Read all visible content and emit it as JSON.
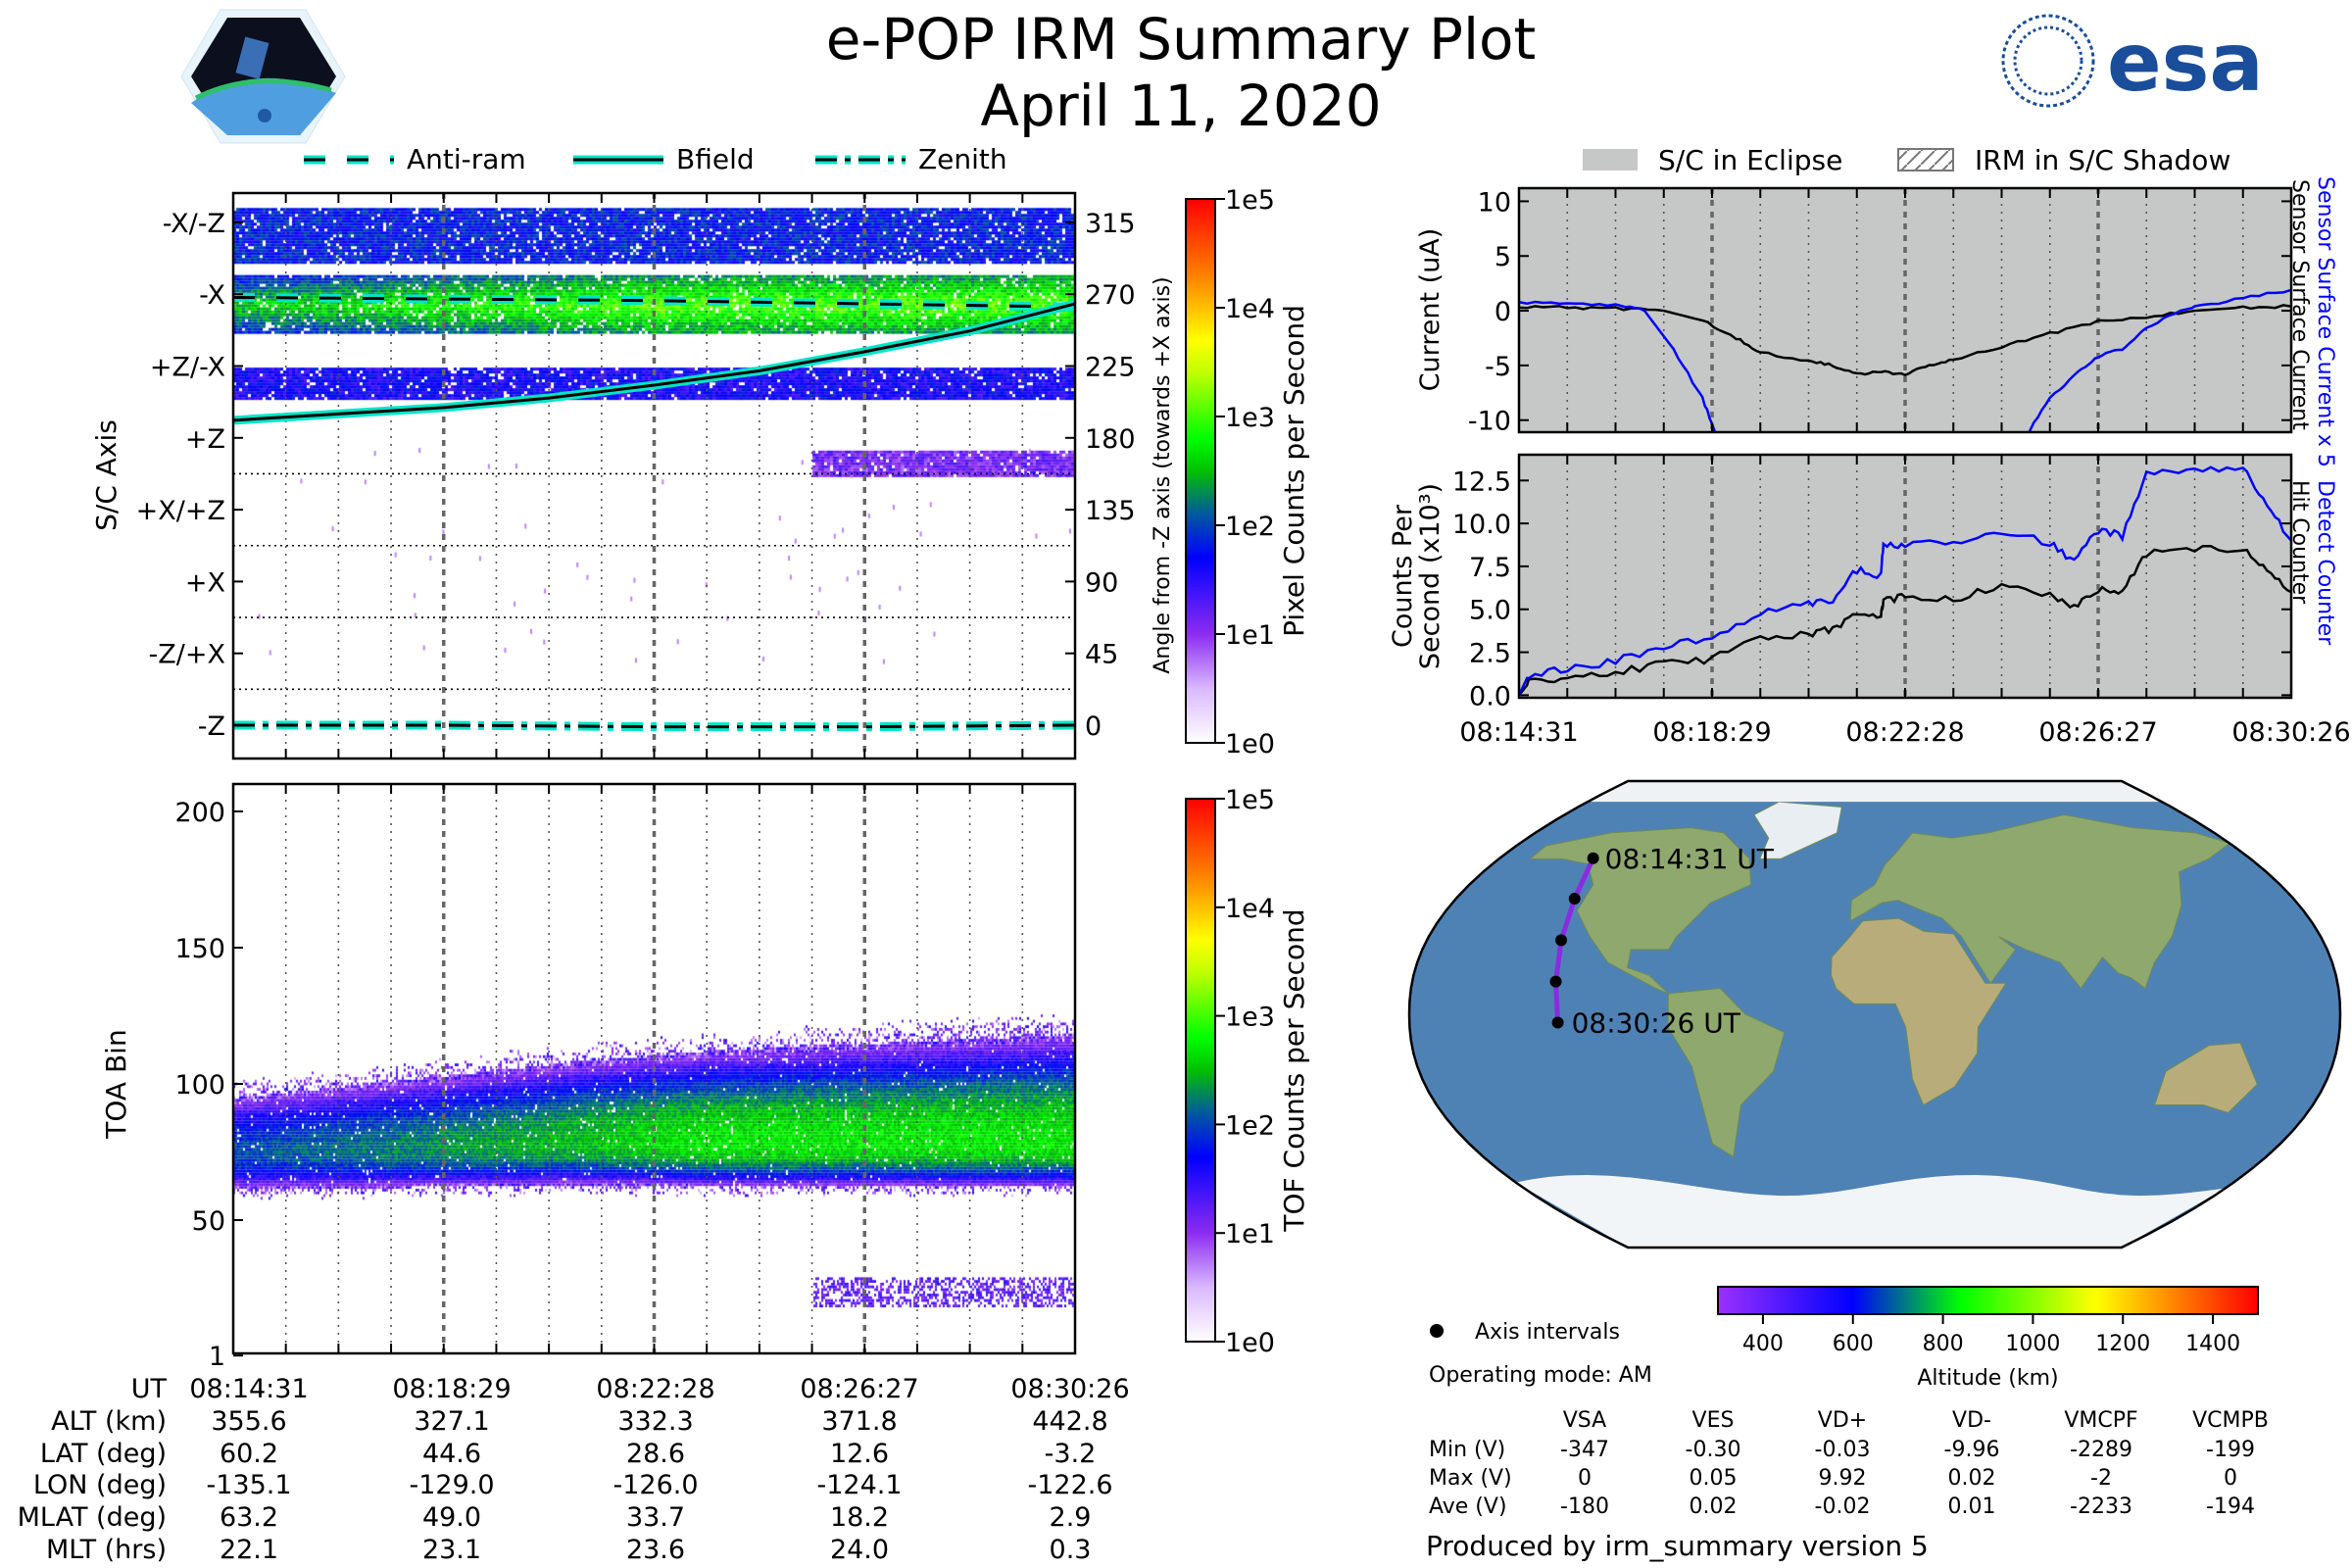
{
  "header": {
    "title": "e-POP IRM Summary Plot",
    "date": "April 11, 2020"
  },
  "logos": {
    "left": "CASSIOPE",
    "right": "esa"
  },
  "legend_left": [
    {
      "label": "Anti-ram",
      "style": "dashed"
    },
    {
      "label": "Bfield",
      "style": "solid"
    },
    {
      "label": "Zenith",
      "style": "dashdot"
    }
  ],
  "legend_right": [
    {
      "label": "S/C in Eclipse",
      "style": "gray-fill"
    },
    {
      "label": "IRM in S/C Shadow",
      "style": "hatched"
    }
  ],
  "colors": {
    "line_outline": "#00e5c8",
    "blue_series": "#0000ff",
    "eclipse_fill": "#c5c8c6"
  },
  "time_ticks": [
    "08:14:31",
    "08:18:29",
    "08:22:28",
    "08:26:27",
    "08:30:26"
  ],
  "chart_data": [
    {
      "id": "pixel",
      "type": "heatmap",
      "ylabel": "S/C Axis",
      "ylabel_right": "Angle from -Z axis (towards +X axis)",
      "yticklabels": [
        "-X/-Z",
        "-X",
        "+Z/-X",
        "+Z",
        "+X/+Z",
        "+X",
        "-Z/+X",
        "-Z"
      ],
      "yticks_right": [
        315,
        270,
        225,
        180,
        135,
        90,
        45,
        0
      ],
      "x_minutes": [
        0,
        16
      ],
      "bands": [
        {
          "angle_range": [
            290,
            324
          ],
          "log_level": 1.8
        },
        {
          "angle_range": [
            246,
            282
          ],
          "log_level": 2.6
        },
        {
          "angle_range": [
            204,
            224
          ],
          "log_level": 1.6
        },
        {
          "angle_range": [
            157,
            172
          ],
          "log_level": 1.1,
          "start_minute": 11
        }
      ],
      "lines": [
        {
          "name": "Anti-ram",
          "x": [
            0,
            4,
            8,
            12,
            16
          ],
          "y": [
            268,
            267,
            266,
            264,
            262
          ]
        },
        {
          "name": "Bfield",
          "x": [
            0,
            2,
            4,
            6,
            8,
            10,
            12,
            14,
            16
          ],
          "y": [
            191,
            195,
            199,
            205,
            213,
            222,
            234,
            247,
            264
          ]
        },
        {
          "name": "Zenith",
          "x": [
            0,
            4,
            8,
            12,
            16
          ],
          "y": [
            0,
            0,
            -1,
            -1,
            0
          ]
        }
      ],
      "colorbar": {
        "label": "Pixel Counts per Second",
        "ticks": [
          "1e0",
          "1e1",
          "1e2",
          "1e3",
          "1e4",
          "1e5"
        ]
      }
    },
    {
      "id": "tof",
      "type": "heatmap",
      "ylabel": "TOA Bin",
      "yticks": [
        1,
        50,
        100,
        150,
        200
      ],
      "ylim": [
        1,
        210
      ],
      "band_center": 78,
      "colorbar": {
        "label": "TOF Counts per Second",
        "ticks": [
          "1e0",
          "1e1",
          "1e2",
          "1e3",
          "1e4",
          "1e5"
        ]
      }
    },
    {
      "id": "current",
      "type": "line",
      "ylabel": "Current (uA)",
      "yticks": [
        -10,
        -5,
        0,
        5,
        10
      ],
      "ylim": [
        -11.1,
        11.2
      ],
      "right_labels": [
        {
          "text": "Sensor Surface Current x 5",
          "color": "#0000ff"
        },
        {
          "text": "Sensor Surface Current",
          "color": "#000000"
        }
      ],
      "series": [
        {
          "name": "Sensor Surface Current",
          "color": "#000000",
          "x": [
            0,
            1,
            2,
            3,
            3.8,
            4.5,
            5,
            6,
            6.5,
            7,
            7.5,
            8,
            8.5,
            9,
            10,
            11,
            12,
            13,
            14,
            15,
            16
          ],
          "y": [
            0.3,
            0.3,
            0.2,
            0,
            -0.9,
            -2.5,
            -3.8,
            -4.6,
            -5.0,
            -5.8,
            -5.6,
            -5.8,
            -5.0,
            -4.5,
            -3.3,
            -2.1,
            -1.0,
            -0.6,
            0,
            0.3,
            0.4
          ]
        },
        {
          "name": "Sensor Surface Current x 5",
          "color": "#0000ff",
          "x": [
            0,
            1,
            2,
            2.6,
            3.2,
            3.8,
            4.1,
            10.5,
            11,
            11.6,
            12,
            12.5,
            13,
            13.7,
            14,
            15,
            16
          ],
          "y": [
            0.8,
            0.6,
            0.5,
            0,
            -3.5,
            -8,
            -11.5,
            -11.5,
            -8,
            -5.5,
            -4.2,
            -3.5,
            -1.5,
            0,
            0.3,
            1.2,
            1.9
          ]
        }
      ]
    },
    {
      "id": "counts",
      "type": "line",
      "ylabel_lines": [
        "Counts Per",
        "Second (x10³)"
      ],
      "yticks": [
        0.0,
        2.5,
        5.0,
        7.5,
        10.0,
        12.5
      ],
      "ytick_labels": [
        "0.0",
        "2.5",
        "5.0",
        "7.5",
        "10.0",
        "12.5"
      ],
      "ylim": [
        -0.15,
        14.0
      ],
      "right_labels": [
        {
          "text": "Detect Counter",
          "color": "#0000ff"
        },
        {
          "text": "Hit Counter",
          "color": "#000000"
        }
      ],
      "series": [
        {
          "name": "Hit Counter",
          "color": "#000000",
          "x": [
            0,
            0.2,
            1,
            2,
            3,
            4,
            5,
            6,
            6.5,
            7,
            7.5,
            7.55,
            8,
            9,
            10,
            11,
            11.5,
            12,
            12.5,
            13,
            14,
            15,
            15.5,
            16
          ],
          "y": [
            0,
            0.7,
            1.0,
            1.4,
            1.8,
            2.1,
            3.3,
            3.6,
            3.8,
            4.8,
            4.6,
            5.6,
            5.7,
            5.6,
            6.3,
            5.9,
            5.2,
            6.1,
            6.0,
            8.3,
            8.5,
            8.6,
            7.4,
            6.0
          ]
        },
        {
          "name": "Detect Counter",
          "color": "#0000ff",
          "x": [
            0,
            0.2,
            1,
            2,
            3,
            4,
            5,
            6,
            6.5,
            7,
            7.5,
            7.55,
            8,
            9,
            10,
            11,
            11.5,
            12,
            12.5,
            13,
            14,
            15,
            15.5,
            16
          ],
          "y": [
            0,
            1.2,
            1.5,
            2.0,
            2.9,
            3.2,
            4.8,
            5.3,
            5.5,
            7.3,
            7.0,
            8.8,
            8.7,
            8.9,
            9.5,
            8.9,
            7.8,
            9.6,
            9.3,
            12.8,
            13.2,
            13.3,
            11.0,
            9.0
          ]
        }
      ]
    }
  ],
  "ephemeris": {
    "row_labels": [
      "UT",
      "ALT (km)",
      "LAT (deg)",
      "LON (deg)",
      "MLAT (deg)",
      "MLT (hrs)"
    ],
    "columns": [
      [
        "08:14:31",
        "355.6",
        "60.2",
        "-135.1",
        "63.2",
        "22.1"
      ],
      [
        "08:18:29",
        "327.1",
        "44.6",
        "-129.0",
        "49.0",
        "23.1"
      ],
      [
        "08:22:28",
        "332.3",
        "28.6",
        "-126.0",
        "33.7",
        "23.6"
      ],
      [
        "08:26:27",
        "371.8",
        "12.6",
        "-124.1",
        "18.2",
        "24.0"
      ],
      [
        "08:30:26",
        "442.8",
        "-3.2",
        "-122.6",
        "2.9",
        "0.3"
      ]
    ]
  },
  "map": {
    "start_label": "08:14:31 UT",
    "end_label": "08:30:26 UT",
    "track": [
      {
        "lat": 60.2,
        "lon": -135.1,
        "alt": 355.6
      },
      {
        "lat": 44.6,
        "lon": -129.0,
        "alt": 327.1
      },
      {
        "lat": 28.6,
        "lon": -126.0,
        "alt": 332.3
      },
      {
        "lat": 12.6,
        "lon": -124.1,
        "alt": 371.8
      },
      {
        "lat": -3.2,
        "lon": -122.6,
        "alt": 442.8
      }
    ],
    "legend": "Axis intervals",
    "altitude_colorbar": {
      "label": "Altitude (km)",
      "ticks": [
        400,
        600,
        800,
        1000,
        1200,
        1400
      ],
      "range": [
        300,
        1500
      ]
    }
  },
  "operating_mode": "Operating mode: AM",
  "voltages": {
    "headers": [
      "VSA",
      "VES",
      "VD+",
      "VD-",
      "VMCPF",
      "VCMPB"
    ],
    "rows": [
      {
        "label": "Min (V)",
        "values": [
          "-347",
          "-0.30",
          "-0.03",
          "-9.96",
          "-2289",
          "-199"
        ]
      },
      {
        "label": "Max (V)",
        "values": [
          "0",
          "0.05",
          "9.92",
          "0.02",
          "-2",
          "0"
        ]
      },
      {
        "label": "Ave (V)",
        "values": [
          "-180",
          "0.02",
          "-0.02",
          "0.01",
          "-2233",
          "-194"
        ]
      }
    ]
  },
  "footer": "Produced by irm_summary version 5"
}
